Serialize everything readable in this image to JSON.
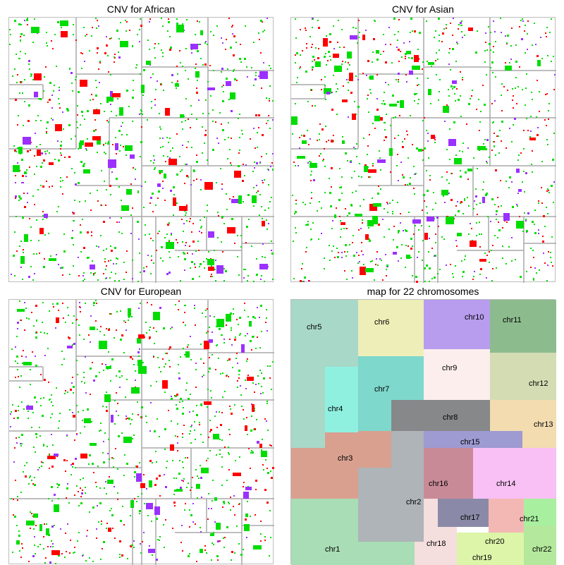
{
  "panels": [
    {
      "title": "CNV for African"
    },
    {
      "title": "CNV for Asian"
    },
    {
      "title": "CNV for European"
    },
    {
      "title": "map for 22 chromosomes"
    }
  ],
  "colors": {
    "gain": "#ff0000",
    "loss": "#00dd00",
    "other": "#9b30ff",
    "boundary": "#a8a8a8"
  },
  "chart_data": [
    {
      "type": "heatmap",
      "title": "CNV for African",
      "legend": "none"
    },
    {
      "type": "heatmap",
      "title": "CNV for Asian",
      "legend": "none"
    },
    {
      "type": "heatmap",
      "title": "CNV for European",
      "legend": "none"
    },
    {
      "type": "heatmap",
      "title": "map for 22 chromosomes",
      "regions": [
        {
          "label": "chr1",
          "color": "#a8ddb5"
        },
        {
          "label": "chr2",
          "color": "#aeb4b8"
        },
        {
          "label": "chr3",
          "color": "#d9a090"
        },
        {
          "label": "chr4",
          "color": "#8ff0e0"
        },
        {
          "label": "chr5",
          "color": "#a8d8c8"
        },
        {
          "label": "chr6",
          "color": "#eeeeb8"
        },
        {
          "label": "chr7",
          "color": "#7ed8cc"
        },
        {
          "label": "chr8",
          "color": "#86888a"
        },
        {
          "label": "chr9",
          "color": "#fbeeed"
        },
        {
          "label": "chr10",
          "color": "#b89cee"
        },
        {
          "label": "chr11",
          "color": "#8cbc8e"
        },
        {
          "label": "chr12",
          "color": "#d4dcb4"
        },
        {
          "label": "chr13",
          "color": "#f2dcb0"
        },
        {
          "label": "chr14",
          "color": "#f8c0f4"
        },
        {
          "label": "chr15",
          "color": "#9e9ad2"
        },
        {
          "label": "chr16",
          "color": "#c98a98"
        },
        {
          "label": "chr17",
          "color": "#8a8aa8"
        },
        {
          "label": "chr18",
          "color": "#f5dede"
        },
        {
          "label": "chr19",
          "color": "#dcf5a8"
        },
        {
          "label": "chr20",
          "color": "#f4b8b4"
        },
        {
          "label": "chr21",
          "color": "#a8f0a0"
        },
        {
          "label": "chr22",
          "color": "#b4e89c"
        }
      ]
    }
  ]
}
